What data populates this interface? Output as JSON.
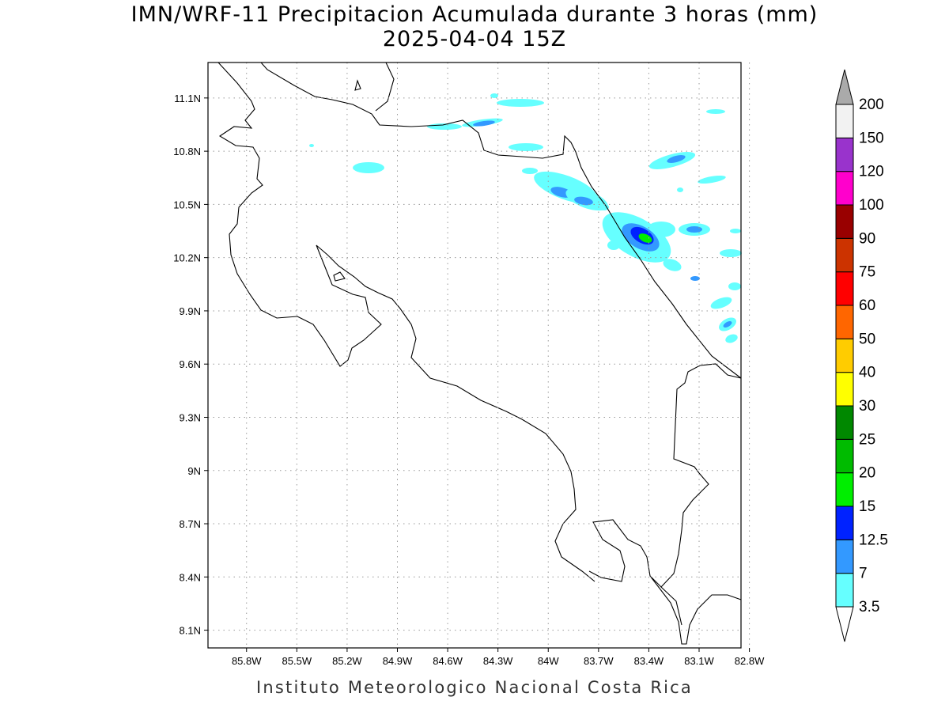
{
  "title": "IMN/WRF-11 Precipitacion Acumulada durante 3 horas (mm)",
  "subtitle": "2025-04-04 15Z",
  "footer": "Instituto Meteorologico Nacional Costa Rica",
  "map": {
    "lon_range": [
      -86.03,
      -82.85
    ],
    "lat_range": [
      8.0,
      11.3
    ],
    "grid": true,
    "lon_ticks": [
      "85.8W",
      "85.5W",
      "85.2W",
      "84.9W",
      "84.6W",
      "84.3W",
      "84W",
      "83.7W",
      "83.4W",
      "83.1W",
      "82.8W"
    ],
    "lon_tick_values": [
      -85.8,
      -85.5,
      -85.2,
      -84.9,
      -84.6,
      -84.3,
      -84.0,
      -83.7,
      -83.4,
      -83.1,
      -82.8
    ],
    "lat_ticks": [
      "11.1N",
      "10.8N",
      "10.5N",
      "10.2N",
      "9.9N",
      "9.6N",
      "9.3N",
      "9N",
      "8.7N",
      "8.4N",
      "8.1N"
    ],
    "lat_tick_values": [
      11.1,
      10.8,
      10.5,
      10.2,
      9.9,
      9.6,
      9.3,
      9.0,
      8.7,
      8.4,
      8.1
    ]
  },
  "colorbar": {
    "labels": [
      "3.5",
      "7",
      "12.5",
      "15",
      "20",
      "25",
      "30",
      "40",
      "50",
      "60",
      "75",
      "90",
      "100",
      "120",
      "150",
      "200"
    ],
    "colors": [
      "#66ffff",
      "#3399ff",
      "#0022ff",
      "#00ee00",
      "#00bb00",
      "#008800",
      "#ffff00",
      "#ffcc00",
      "#ff6600",
      "#ff0000",
      "#cc3300",
      "#990000",
      "#ff00cc",
      "#9933cc",
      "#f2f2f2"
    ],
    "under_color": "#ffffff",
    "over_color": "#aaaaaa"
  }
}
